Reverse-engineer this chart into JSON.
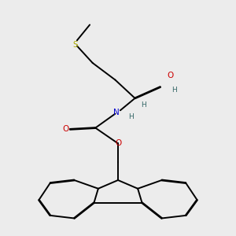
{
  "background_color": "#ececec",
  "atom_colors": {
    "C": "#000000",
    "N": "#0000cc",
    "O": "#cc0000",
    "S": "#aaaa00",
    "H": "#336666"
  },
  "bond_color": "#000000",
  "figsize": [
    3.0,
    3.0
  ],
  "dpi": 100,
  "bond_lw": 1.4,
  "font_size": 7.5
}
